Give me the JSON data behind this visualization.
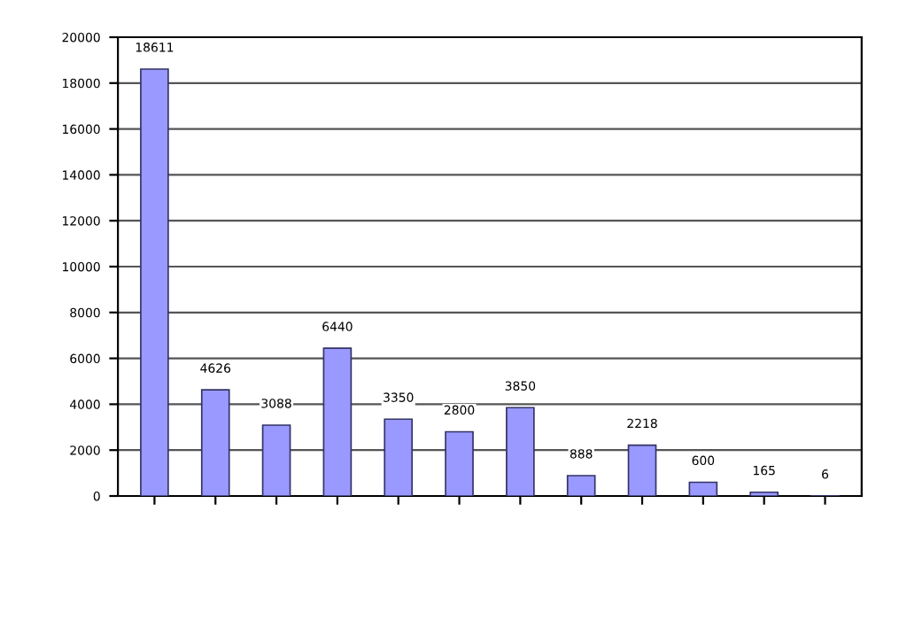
{
  "chart_data": {
    "type": "bar",
    "categories": [
      null,
      null,
      null,
      null,
      null,
      null,
      null,
      null,
      null,
      null,
      null,
      null
    ],
    "values": [
      18611,
      4626,
      3088,
      6440,
      3350,
      2800,
      3850,
      888,
      2218,
      600,
      165,
      6
    ],
    "color": "#9999ff",
    "ylim": [
      0,
      20000
    ],
    "yticks": [
      0,
      2000,
      4000,
      6000,
      8000,
      10000,
      12000,
      14000,
      16000,
      18000,
      20000
    ],
    "grid": "y",
    "data_labels": true
  }
}
